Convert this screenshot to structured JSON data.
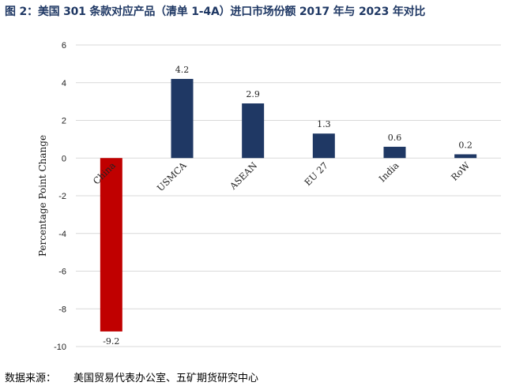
{
  "title": "图 2：美国 301 条款对应产品（清单 1-4A）进口市场份额 2017 年与 2023 年对比",
  "source": {
    "label": "数据来源：",
    "text": "美国贸易代表办公室、五矿期货研究中心"
  },
  "chart_data": {
    "type": "bar",
    "categories": [
      "China",
      "USMCA",
      "ASEAN",
      "EU 27",
      "India",
      "RoW"
    ],
    "values": [
      -9.2,
      4.2,
      2.9,
      1.3,
      0.6,
      0.2
    ],
    "data_labels": [
      "-9.2",
      "4.2",
      "2.9",
      "1.3",
      "0.6",
      "0.2"
    ],
    "ylabel": "Percentage Point Change",
    "ylim": [
      -10,
      6
    ],
    "yticks": [
      -10,
      -8,
      -6,
      -4,
      -2,
      0,
      2,
      4,
      6
    ],
    "ytick_labels": [
      "-10",
      "-8",
      "-6",
      "-4",
      "-2",
      "0",
      "2",
      "4",
      "6"
    ],
    "grid": true,
    "colors": {
      "negative": "#c00000",
      "positive": "#1f3864",
      "grid": "#d9d9d9"
    }
  }
}
